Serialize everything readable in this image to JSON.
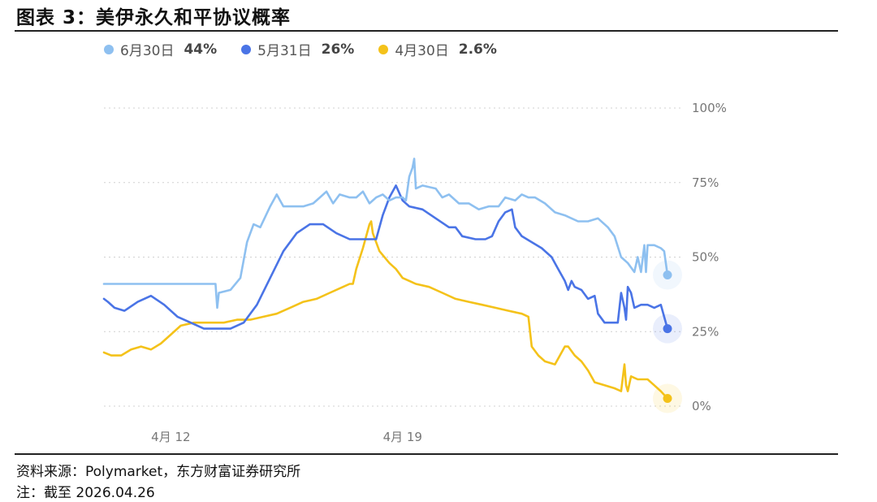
{
  "header": {
    "title": "图表 3：美伊永久和平协议概率"
  },
  "footer": {
    "source": "资料来源：Polymarket，东方财富证券研究所",
    "note": "注：截至 2026.04.26"
  },
  "colors": {
    "jun30": "#8ec0f0",
    "may31": "#4a74e6",
    "apr30": "#f4c21a",
    "grid": "#d0d0d0"
  },
  "chart_data": {
    "type": "line",
    "xlabel": "",
    "ylabel": "",
    "ylim": [
      0,
      100
    ],
    "yticks": [
      "100%",
      "75%",
      "50%",
      "25%",
      "0%"
    ],
    "xticks": [
      {
        "label": "4月 12",
        "x": 12
      },
      {
        "label": "4月 19",
        "x": 19
      }
    ],
    "xlim": [
      9.98,
      27.0
    ],
    "grid": true,
    "legend_position": "top-left",
    "series": [
      {
        "name": "6月30日",
        "latest": "44%",
        "color": "#8ec0f0",
        "points": [
          [
            9.98,
            41
          ],
          [
            12.0,
            41
          ],
          [
            13.0,
            41
          ],
          [
            13.35,
            41
          ],
          [
            13.4,
            33
          ],
          [
            13.45,
            38
          ],
          [
            13.8,
            39
          ],
          [
            14.1,
            43
          ],
          [
            14.3,
            55
          ],
          [
            14.5,
            61
          ],
          [
            14.7,
            60
          ],
          [
            15.0,
            67
          ],
          [
            15.2,
            71
          ],
          [
            15.4,
            67
          ],
          [
            16.0,
            67
          ],
          [
            16.3,
            68
          ],
          [
            16.5,
            70
          ],
          [
            16.7,
            72
          ],
          [
            16.9,
            68
          ],
          [
            17.1,
            71
          ],
          [
            17.4,
            70
          ],
          [
            17.6,
            70
          ],
          [
            17.8,
            72
          ],
          [
            18.0,
            68
          ],
          [
            18.2,
            70
          ],
          [
            18.4,
            71
          ],
          [
            18.6,
            69
          ],
          [
            18.8,
            70
          ],
          [
            19.0,
            70
          ],
          [
            19.1,
            69
          ],
          [
            19.2,
            77
          ],
          [
            19.3,
            80
          ],
          [
            19.35,
            83
          ],
          [
            19.4,
            73
          ],
          [
            19.6,
            74
          ],
          [
            20.0,
            73
          ],
          [
            20.2,
            70
          ],
          [
            20.4,
            71
          ],
          [
            20.7,
            68
          ],
          [
            21.0,
            68
          ],
          [
            21.3,
            66
          ],
          [
            21.6,
            67
          ],
          [
            21.9,
            67
          ],
          [
            22.1,
            70
          ],
          [
            22.4,
            69
          ],
          [
            22.6,
            71
          ],
          [
            22.8,
            70
          ],
          [
            23.0,
            70
          ],
          [
            23.3,
            68
          ],
          [
            23.6,
            65
          ],
          [
            23.9,
            64
          ],
          [
            24.1,
            63
          ],
          [
            24.3,
            62
          ],
          [
            24.6,
            62
          ],
          [
            24.9,
            63
          ],
          [
            25.2,
            60
          ],
          [
            25.4,
            57
          ],
          [
            25.6,
            50
          ],
          [
            25.8,
            48
          ],
          [
            26.0,
            45
          ],
          [
            26.1,
            50
          ],
          [
            26.2,
            45
          ],
          [
            26.3,
            54
          ],
          [
            26.35,
            45
          ],
          [
            26.4,
            54
          ],
          [
            26.6,
            54
          ],
          [
            26.8,
            53
          ],
          [
            26.9,
            52
          ],
          [
            27.0,
            44
          ]
        ]
      },
      {
        "name": "5月31日",
        "latest": "26%",
        "color": "#4a74e6",
        "points": [
          [
            9.98,
            36
          ],
          [
            10.1,
            35
          ],
          [
            10.3,
            33
          ],
          [
            10.6,
            32
          ],
          [
            11.0,
            35
          ],
          [
            11.4,
            37
          ],
          [
            11.8,
            34
          ],
          [
            12.2,
            30
          ],
          [
            12.6,
            28
          ],
          [
            13.0,
            26
          ],
          [
            13.4,
            26
          ],
          [
            13.8,
            26
          ],
          [
            14.2,
            28
          ],
          [
            14.6,
            34
          ],
          [
            15.0,
            43
          ],
          [
            15.4,
            52
          ],
          [
            15.8,
            58
          ],
          [
            16.2,
            61
          ],
          [
            16.6,
            61
          ],
          [
            17.0,
            58
          ],
          [
            17.4,
            56
          ],
          [
            17.8,
            56
          ],
          [
            18.0,
            56
          ],
          [
            18.2,
            56
          ],
          [
            18.4,
            64
          ],
          [
            18.6,
            70
          ],
          [
            18.8,
            74
          ],
          [
            19.0,
            69
          ],
          [
            19.2,
            67
          ],
          [
            19.6,
            66
          ],
          [
            20.0,
            63
          ],
          [
            20.4,
            60
          ],
          [
            20.6,
            60
          ],
          [
            20.8,
            57
          ],
          [
            21.2,
            56
          ],
          [
            21.5,
            56
          ],
          [
            21.7,
            57
          ],
          [
            21.9,
            62
          ],
          [
            22.1,
            65
          ],
          [
            22.3,
            66
          ],
          [
            22.4,
            60
          ],
          [
            22.6,
            57
          ],
          [
            22.9,
            55
          ],
          [
            23.2,
            53
          ],
          [
            23.5,
            50
          ],
          [
            23.7,
            46
          ],
          [
            23.9,
            42
          ],
          [
            24.0,
            39
          ],
          [
            24.1,
            42
          ],
          [
            24.2,
            40
          ],
          [
            24.4,
            39
          ],
          [
            24.6,
            36
          ],
          [
            24.8,
            37
          ],
          [
            24.9,
            31
          ],
          [
            25.1,
            28
          ],
          [
            25.3,
            28
          ],
          [
            25.5,
            28
          ],
          [
            25.6,
            38
          ],
          [
            25.7,
            33
          ],
          [
            25.75,
            29
          ],
          [
            25.8,
            40
          ],
          [
            25.9,
            38
          ],
          [
            26.0,
            33
          ],
          [
            26.2,
            34
          ],
          [
            26.4,
            34
          ],
          [
            26.6,
            33
          ],
          [
            26.8,
            34
          ],
          [
            27.0,
            26
          ]
        ]
      },
      {
        "name": "4月30日",
        "latest": "2.6%",
        "color": "#f4c21a",
        "points": [
          [
            9.98,
            18
          ],
          [
            10.2,
            17
          ],
          [
            10.5,
            17
          ],
          [
            10.8,
            19
          ],
          [
            11.1,
            20
          ],
          [
            11.4,
            19
          ],
          [
            11.7,
            21
          ],
          [
            12.0,
            24
          ],
          [
            12.3,
            27
          ],
          [
            12.7,
            28
          ],
          [
            13.2,
            28
          ],
          [
            13.6,
            28
          ],
          [
            14.0,
            29
          ],
          [
            14.4,
            29
          ],
          [
            14.8,
            30
          ],
          [
            15.2,
            31
          ],
          [
            15.6,
            33
          ],
          [
            16.0,
            35
          ],
          [
            16.4,
            36
          ],
          [
            16.8,
            38
          ],
          [
            17.2,
            40
          ],
          [
            17.4,
            41
          ],
          [
            17.5,
            41
          ],
          [
            17.6,
            46
          ],
          [
            17.8,
            53
          ],
          [
            18.0,
            61
          ],
          [
            18.05,
            62
          ],
          [
            18.1,
            58
          ],
          [
            18.3,
            52
          ],
          [
            18.6,
            48
          ],
          [
            18.8,
            46
          ],
          [
            19.0,
            43
          ],
          [
            19.4,
            41
          ],
          [
            19.8,
            40
          ],
          [
            20.2,
            38
          ],
          [
            20.6,
            36
          ],
          [
            21.0,
            35
          ],
          [
            21.4,
            34
          ],
          [
            21.8,
            33
          ],
          [
            22.2,
            32
          ],
          [
            22.6,
            31
          ],
          [
            22.8,
            30
          ],
          [
            22.9,
            20
          ],
          [
            23.1,
            17
          ],
          [
            23.3,
            15
          ],
          [
            23.6,
            14
          ],
          [
            23.9,
            20
          ],
          [
            24.0,
            20
          ],
          [
            24.2,
            17
          ],
          [
            24.4,
            15
          ],
          [
            24.6,
            12
          ],
          [
            24.8,
            8
          ],
          [
            25.1,
            7
          ],
          [
            25.4,
            6
          ],
          [
            25.6,
            5
          ],
          [
            25.7,
            14
          ],
          [
            25.75,
            7
          ],
          [
            25.8,
            5
          ],
          [
            25.9,
            10
          ],
          [
            26.1,
            9
          ],
          [
            26.4,
            9
          ],
          [
            26.6,
            7
          ],
          [
            26.8,
            5
          ],
          [
            27.0,
            2.6
          ]
        ]
      }
    ]
  }
}
